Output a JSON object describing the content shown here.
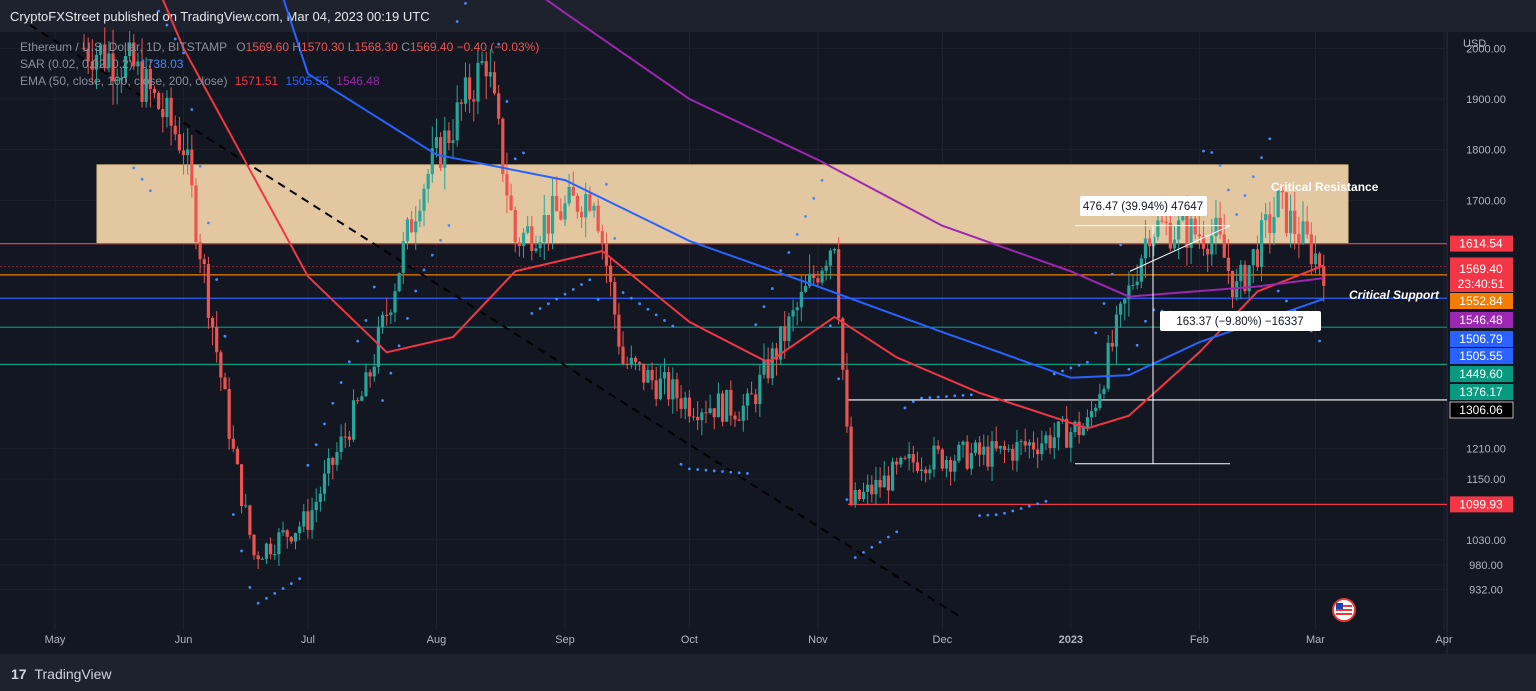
{
  "header": {
    "published": "CryptoFXStreet published on TradingView.com, Mar 04, 2023 00:19 UTC"
  },
  "footer": {
    "brand": "TradingView",
    "logo_mark": "17"
  },
  "legend": {
    "symbol": "Ethereum / U.S. Dollar, 1D, BITSTAMP",
    "ohlc": [
      {
        "label": "O",
        "value": "1569.60"
      },
      {
        "label": "H",
        "value": "1570.30"
      },
      {
        "label": "L",
        "value": "1568.30"
      },
      {
        "label": "C",
        "value": "1569.40"
      }
    ],
    "change": "−0.40 (−0.03%)",
    "sar_label": "SAR (0.02, 0.02, 0.2)",
    "sar_value": "1738.03",
    "ema_label": "EMA (50, close, 100, close, 200, close)",
    "ema_values": [
      "1571.51",
      "1505.55",
      "1546.48"
    ]
  },
  "colors": {
    "background": "#131722",
    "grid": "#1e222d",
    "text": "#b2b5be",
    "up": "#26a69a",
    "down": "#ef5350",
    "ema50": "#f23645",
    "ema100": "#2962ff",
    "ema200": "#9c27b0",
    "sar": "#448aff",
    "zone": "#ffe0b2"
  },
  "chart_data": {
    "type": "candlestick",
    "title": "Ethereum / U.S. Dollar, 1D, BITSTAMP",
    "ylabel": "USD",
    "ylim": [
      905,
      2150
    ],
    "y_ticks": [
      "932.00",
      "980.00",
      "1030.00",
      "1099.93",
      "1150.00",
      "1210.00",
      "1306.06",
      "1376.17",
      "1449.60",
      "1505.55",
      "1506.79",
      "1546.48",
      "1552.84",
      "1569.40",
      "1571.51",
      "1614.54",
      "1700.00",
      "1800.00",
      "1900.00",
      "2000.00"
    ],
    "x_labels": [
      "May",
      "Jun",
      "Jul",
      "Aug",
      "Sep",
      "Oct",
      "Nov",
      "Dec",
      "2023",
      "Feb",
      "Mar",
      "Apr"
    ],
    "candles_approx": [
      {
        "date": "2022-05-10",
        "open": 2350,
        "high": 2450,
        "low": 1950,
        "close": 2000
      },
      {
        "date": "2022-05-20",
        "open": 2000,
        "high": 2100,
        "low": 1900,
        "close": 1960
      },
      {
        "date": "2022-06-01",
        "open": 1900,
        "high": 1950,
        "low": 1750,
        "close": 1810
      },
      {
        "date": "2022-06-13",
        "open": 1450,
        "high": 1500,
        "low": 1100,
        "close": 1200
      },
      {
        "date": "2022-06-18",
        "open": 1100,
        "high": 1100,
        "low": 890,
        "close": 1000
      },
      {
        "date": "2022-07-01",
        "open": 1050,
        "high": 1150,
        "low": 1000,
        "close": 1070
      },
      {
        "date": "2022-07-15",
        "open": 1150,
        "high": 1350,
        "low": 1100,
        "close": 1330
      },
      {
        "date": "2022-07-28",
        "open": 1600,
        "high": 1780,
        "low": 1500,
        "close": 1720
      },
      {
        "date": "2022-08-13",
        "open": 1950,
        "high": 2020,
        "low": 1850,
        "close": 1980
      },
      {
        "date": "2022-08-20",
        "open": 1700,
        "high": 1720,
        "low": 1550,
        "close": 1620
      },
      {
        "date": "2022-09-08",
        "open": 1650,
        "high": 1780,
        "low": 1600,
        "close": 1720
      },
      {
        "date": "2022-09-15",
        "open": 1480,
        "high": 1500,
        "low": 1330,
        "close": 1380
      },
      {
        "date": "2022-10-01",
        "open": 1320,
        "high": 1350,
        "low": 1270,
        "close": 1300
      },
      {
        "date": "2022-10-15",
        "open": 1300,
        "high": 1330,
        "low": 1190,
        "close": 1290
      },
      {
        "date": "2022-11-05",
        "open": 1600,
        "high": 1670,
        "low": 1550,
        "close": 1630
      },
      {
        "date": "2022-11-09",
        "open": 1300,
        "high": 1330,
        "low": 1080,
        "close": 1100
      },
      {
        "date": "2022-11-25",
        "open": 1200,
        "high": 1230,
        "low": 1080,
        "close": 1190
      },
      {
        "date": "2022-12-15",
        "open": 1300,
        "high": 1350,
        "low": 1190,
        "close": 1200
      },
      {
        "date": "2023-01-05",
        "open": 1250,
        "high": 1270,
        "low": 1240,
        "close": 1255
      },
      {
        "date": "2023-01-20",
        "open": 1550,
        "high": 1660,
        "low": 1530,
        "close": 1650
      },
      {
        "date": "2023-02-05",
        "open": 1650,
        "high": 1680,
        "low": 1600,
        "close": 1630
      },
      {
        "date": "2023-02-10",
        "open": 1550,
        "high": 1560,
        "low": 1500,
        "close": 1520
      },
      {
        "date": "2023-02-20",
        "open": 1700,
        "high": 1740,
        "low": 1650,
        "close": 1690
      },
      {
        "date": "2023-03-03",
        "open": 1640,
        "high": 1650,
        "low": 1560,
        "close": 1569.4
      }
    ],
    "series": [
      {
        "name": "EMA 50",
        "last": 1571.51
      },
      {
        "name": "EMA 100",
        "last": 1505.55
      },
      {
        "name": "EMA 200",
        "last": 1546.48
      },
      {
        "name": "SAR",
        "last": 1738.03
      }
    ],
    "horizontal_levels": [
      1614.54,
      1569.4,
      1552.84,
      1506.79,
      1449.6,
      1376.17,
      1306.06,
      1099.93
    ],
    "resistance_zone": [
      1614.54,
      1770
    ],
    "price_tags": [
      {
        "value": "1614.54",
        "color": "#f23645"
      },
      {
        "value": "1571.51",
        "color": "#f23645"
      },
      {
        "value": "1569.40",
        "color": "#f23645"
      },
      {
        "value": "23:40:51",
        "color": "#f23645"
      },
      {
        "value": "1552.84",
        "color": "#f57c00"
      },
      {
        "value": "1546.48",
        "color": "#9c27b0"
      },
      {
        "value": "1506.79",
        "color": "#2962ff"
      },
      {
        "value": "1505.55",
        "color": "#2962ff"
      },
      {
        "value": "1449.60",
        "color": "#089981"
      },
      {
        "value": "1376.17",
        "color": "#089981"
      },
      {
        "value": "1306.06",
        "color": "#000000"
      },
      {
        "value": "1099.93",
        "color": "#f23645"
      }
    ],
    "annotations": {
      "critical_resistance": "Critical Resistance",
      "critical_support": "Critical Support",
      "measure_up": "476.47 (39.94%) 47647",
      "measure_down": "163.37 (−9.80%) −16337"
    }
  }
}
